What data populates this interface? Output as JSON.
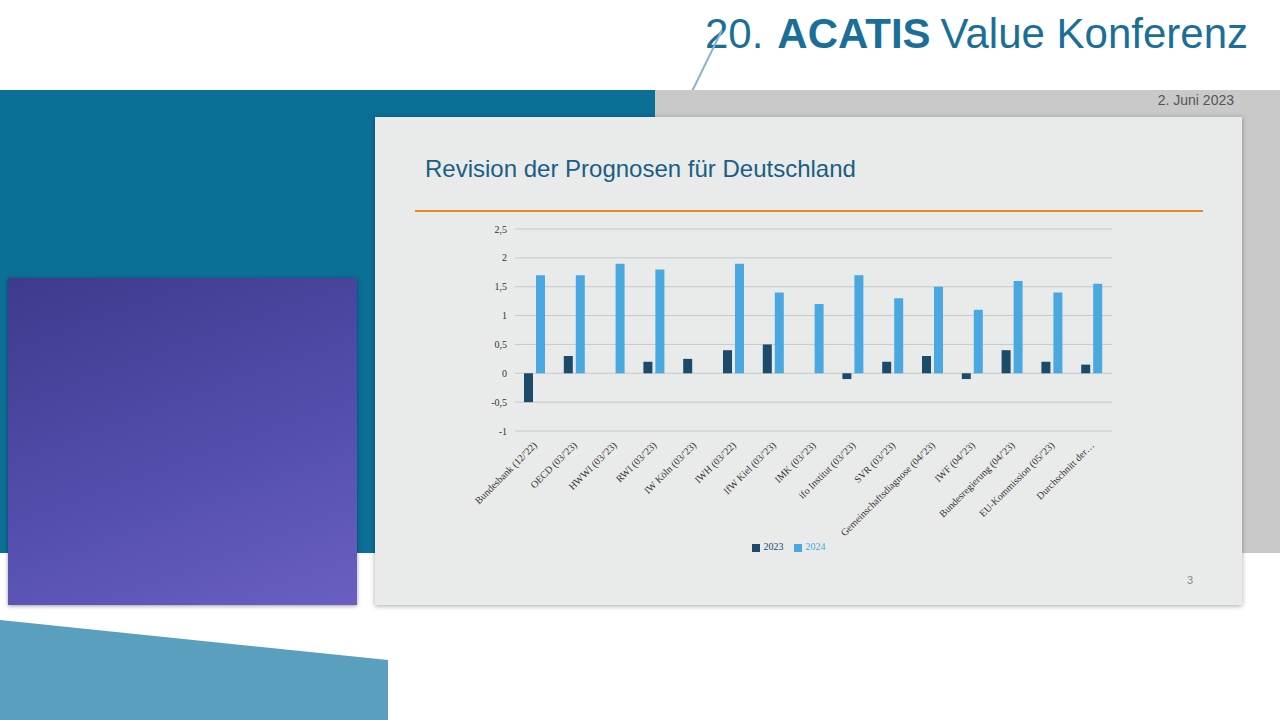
{
  "header": {
    "number": "20.",
    "brand": "ACATIS",
    "event": "Value Konferenz",
    "date": "2. Juni 2023"
  },
  "slide": {
    "page": 3
  },
  "chart_data": {
    "type": "bar",
    "title": "Revision der Prognosen für Deutschland",
    "categories": [
      "Bundesbank (12/'22)",
      "OECD (03/'23)",
      "HWWI (03/'23)",
      "RWI (03/'23)",
      "IW Köln (03/'23)",
      "IWH (03/'22)",
      "IfW Kiel (03/'23)",
      "IMK (03/'23)",
      "ifo Institut (03/'23)",
      "SVR (03/'23)",
      "Gemeinschaftsdiagnose (04/'23)",
      "IWF (04/'23)",
      "Bundesregierung (04/'23)",
      "EU-Kommission (05/'23)",
      "Durchschnitt der…"
    ],
    "series": [
      {
        "name": "2023",
        "color": "#1b4a6b",
        "values": [
          -0.5,
          0.3,
          0,
          0.2,
          0.25,
          0.4,
          0.5,
          0,
          -0.1,
          0.2,
          0.3,
          -0.1,
          0.4,
          0.2,
          0.15
        ]
      },
      {
        "name": "2024",
        "color": "#4aa8e0",
        "values": [
          1.7,
          1.7,
          1.9,
          1.8,
          null,
          1.9,
          1.4,
          1.2,
          1.7,
          1.3,
          1.5,
          1.1,
          1.6,
          1.4,
          1.55
        ]
      }
    ],
    "ylim": [
      -1,
      2.5
    ],
    "yticks": [
      -1,
      {
        "value": -0.5,
        "label": "-0,5"
      },
      0,
      {
        "value": 0.5,
        "label": "0,5"
      },
      1,
      {
        "value": 1.5,
        "label": "1,5"
      },
      2,
      {
        "value": 2.5,
        "label": "2,5"
      }
    ],
    "grid": true,
    "legend": "bottom"
  }
}
